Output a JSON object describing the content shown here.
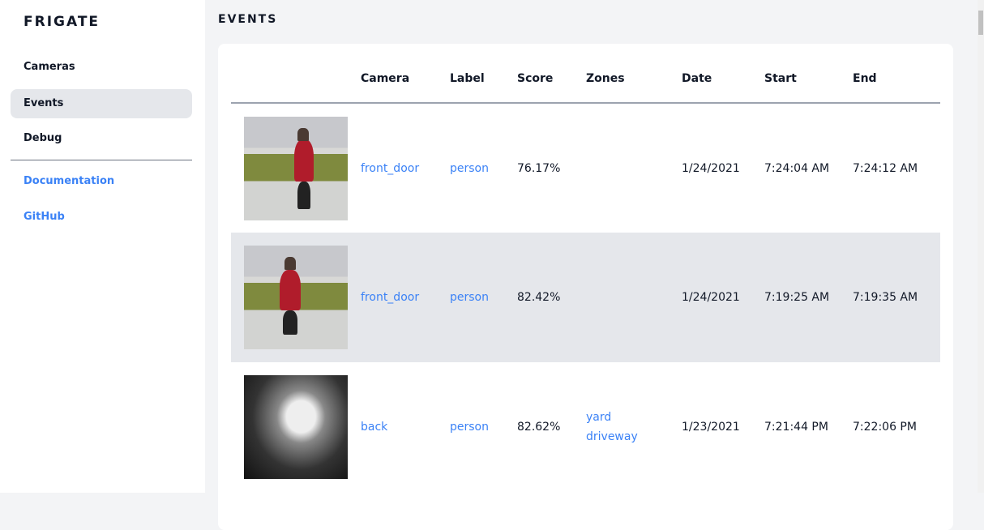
{
  "sidebar": {
    "brand": "FRIGATE",
    "items": [
      {
        "label": "Cameras"
      },
      {
        "label": "Events"
      },
      {
        "label": "Debug"
      }
    ],
    "links": [
      {
        "label": "Documentation"
      },
      {
        "label": "GitHub"
      }
    ]
  },
  "page": {
    "title": "EVENTS"
  },
  "table": {
    "headers": [
      "Camera",
      "Label",
      "Score",
      "Zones",
      "Date",
      "Start",
      "End"
    ],
    "rows": [
      {
        "camera": "front_door",
        "label": "person",
        "score": "76.17%",
        "zones": [
          "",
          ""
        ],
        "date": "1/24/2021",
        "start": "7:24:04 AM",
        "end": "7:24:12 AM"
      },
      {
        "camera": "front_door",
        "label": "person",
        "score": "82.42%",
        "zones": [
          "",
          ""
        ],
        "date": "1/24/2021",
        "start": "7:19:25 AM",
        "end": "7:19:35 AM"
      },
      {
        "camera": "back",
        "label": "person",
        "score": "82.62%",
        "zones": [
          "yard",
          "driveway"
        ],
        "date": "1/23/2021",
        "start": "7:21:44 PM",
        "end": "7:22:06 PM"
      }
    ]
  }
}
